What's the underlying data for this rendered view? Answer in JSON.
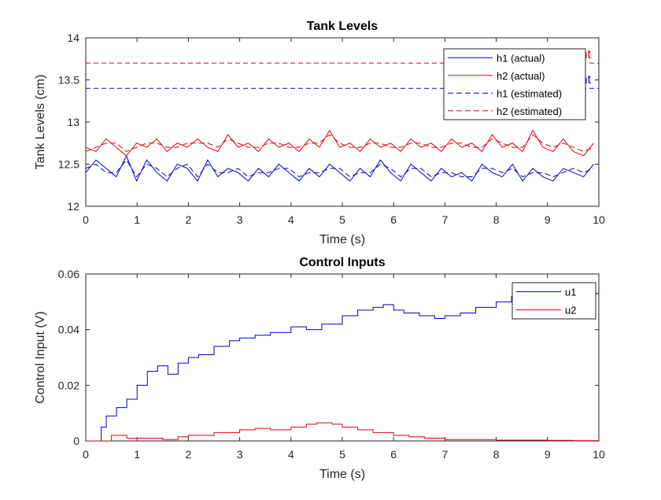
{
  "chart_data": [
    {
      "type": "line",
      "title": "Tank Levels",
      "xlabel": "Time (s)",
      "ylabel": "Tank Levels (cm)",
      "xlim": [
        0,
        10
      ],
      "ylim": [
        12,
        14
      ],
      "xticks": [
        "0",
        "1",
        "2",
        "3",
        "4",
        "5",
        "6",
        "7",
        "8",
        "9",
        "10"
      ],
      "yticks": [
        "12",
        "12.5",
        "13",
        "13.5",
        "14"
      ],
      "grid": false,
      "legend_position": "top-right",
      "setpoints": [
        {
          "label": "h2 Setpoint",
          "y": 13.7,
          "color": "#e8000b"
        },
        {
          "label": "h1 Setpoint",
          "y": 13.4,
          "color": "#0000e6"
        }
      ],
      "series": [
        {
          "name": "h1 (actual)",
          "color": "#0000cc",
          "style": "solid",
          "values": [
            12.4,
            12.55,
            12.45,
            12.35,
            12.6,
            12.3,
            12.55,
            12.4,
            12.3,
            12.5,
            12.45,
            12.3,
            12.55,
            12.35,
            12.45,
            12.4,
            12.3,
            12.45,
            12.35,
            12.5,
            12.4,
            12.3,
            12.45,
            12.35,
            12.5,
            12.4,
            12.3,
            12.45,
            12.35,
            12.55,
            12.4,
            12.3,
            12.5,
            12.4,
            12.3,
            12.45,
            12.35,
            12.4,
            12.3,
            12.5,
            12.4,
            12.35,
            12.5,
            12.3,
            12.45,
            12.35,
            12.3,
            12.45,
            12.4,
            12.35,
            12.5
          ]
        },
        {
          "name": "h2 (actual)",
          "color": "#e8000b",
          "style": "solid",
          "values": [
            12.7,
            12.65,
            12.8,
            12.7,
            12.6,
            12.75,
            12.7,
            12.8,
            12.65,
            12.75,
            12.7,
            12.8,
            12.7,
            12.65,
            12.85,
            12.7,
            12.75,
            12.65,
            12.8,
            12.7,
            12.75,
            12.65,
            12.8,
            12.7,
            12.9,
            12.7,
            12.75,
            12.65,
            12.8,
            12.7,
            12.75,
            12.65,
            12.8,
            12.7,
            12.75,
            12.65,
            12.8,
            12.7,
            12.75,
            12.65,
            12.85,
            12.7,
            12.75,
            12.65,
            12.9,
            12.7,
            12.65,
            12.8,
            12.65,
            12.6,
            12.75
          ]
        },
        {
          "name": "h1 (estimated)",
          "color": "#0000cc",
          "style": "dashed",
          "values": [
            12.45,
            12.5,
            12.4,
            12.4,
            12.55,
            12.35,
            12.5,
            12.45,
            12.35,
            12.45,
            12.5,
            12.35,
            12.5,
            12.4,
            12.4,
            12.45,
            12.35,
            12.4,
            12.4,
            12.45,
            12.45,
            12.35,
            12.4,
            12.4,
            12.45,
            12.45,
            12.35,
            12.4,
            12.4,
            12.5,
            12.45,
            12.35,
            12.45,
            12.45,
            12.35,
            12.4,
            12.4,
            12.35,
            12.35,
            12.45,
            12.45,
            12.4,
            12.45,
            12.35,
            12.4,
            12.4,
            12.35,
            12.4,
            12.45,
            12.4,
            12.45
          ]
        },
        {
          "name": "h2 (estimated)",
          "color": "#e8000b",
          "style": "dashed",
          "values": [
            12.65,
            12.7,
            12.75,
            12.75,
            12.65,
            12.7,
            12.75,
            12.75,
            12.7,
            12.7,
            12.75,
            12.75,
            12.75,
            12.7,
            12.8,
            12.75,
            12.7,
            12.7,
            12.75,
            12.75,
            12.7,
            12.7,
            12.75,
            12.75,
            12.85,
            12.75,
            12.7,
            12.7,
            12.75,
            12.75,
            12.7,
            12.7,
            12.75,
            12.75,
            12.7,
            12.7,
            12.75,
            12.75,
            12.7,
            12.7,
            12.8,
            12.75,
            12.7,
            12.7,
            12.85,
            12.75,
            12.7,
            12.75,
            12.7,
            12.65,
            12.7
          ]
        }
      ]
    },
    {
      "type": "line",
      "title": "Control Inputs",
      "xlabel": "Time (s)",
      "ylabel": "Control Input (V)",
      "xlim": [
        0,
        10
      ],
      "ylim": [
        0,
        0.06
      ],
      "xticks": [
        "0",
        "1",
        "2",
        "3",
        "4",
        "5",
        "6",
        "7",
        "8",
        "9",
        "10"
      ],
      "yticks": [
        "0",
        "0.02",
        "0.04",
        "0.06"
      ],
      "grid": false,
      "legend_position": "top-right",
      "step": true,
      "series": [
        {
          "name": "u1",
          "color": "#0000cc",
          "x": [
            0,
            0.3,
            0.4,
            0.6,
            0.8,
            1.0,
            1.2,
            1.4,
            1.6,
            1.8,
            2.0,
            2.2,
            2.5,
            2.8,
            3.0,
            3.3,
            3.6,
            4.0,
            4.3,
            4.6,
            5.0,
            5.3,
            5.6,
            5.8,
            6.0,
            6.2,
            6.5,
            6.8,
            7.0,
            7.3,
            7.6,
            8.0,
            8.3,
            8.6,
            9.0,
            9.3,
            9.6,
            9.9
          ],
          "values": [
            0,
            0.005,
            0.009,
            0.012,
            0.015,
            0.02,
            0.025,
            0.027,
            0.024,
            0.028,
            0.03,
            0.031,
            0.034,
            0.036,
            0.037,
            0.038,
            0.039,
            0.041,
            0.04,
            0.042,
            0.045,
            0.047,
            0.048,
            0.049,
            0.047,
            0.046,
            0.045,
            0.044,
            0.045,
            0.046,
            0.048,
            0.05,
            0.052,
            0.051,
            0.053,
            0.052,
            0.053,
            0.053
          ]
        },
        {
          "name": "u2",
          "color": "#e8000b",
          "x": [
            0,
            0.5,
            0.8,
            1.2,
            1.5,
            1.8,
            2.0,
            2.5,
            3.0,
            3.3,
            3.6,
            4.0,
            4.3,
            4.5,
            4.8,
            5.0,
            5.3,
            5.6,
            6.0,
            6.3,
            6.6,
            7.0,
            7.5,
            8.0,
            8.5,
            9.0,
            9.5,
            9.9
          ],
          "values": [
            0,
            0.002,
            0.001,
            0.001,
            0.0005,
            0.0015,
            0.002,
            0.003,
            0.004,
            0.0045,
            0.004,
            0.005,
            0.006,
            0.0065,
            0.006,
            0.005,
            0.004,
            0.003,
            0.002,
            0.0015,
            0.001,
            0.0005,
            0.0005,
            0.0003,
            0.0003,
            0.0002,
            0.0001,
            0.0001
          ]
        }
      ]
    }
  ]
}
